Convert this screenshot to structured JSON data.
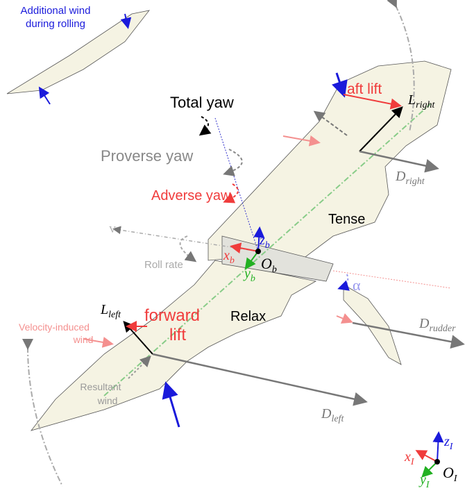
{
  "labels": {
    "additional_wind": [
      "Additional wind",
      "during rolling"
    ],
    "aft_lift": "aft lift",
    "l_right": {
      "main": "L",
      "sub": "right"
    },
    "total_yaw": "Total yaw",
    "proverse_yaw": "Proverse yaw",
    "d_right": {
      "main": "D",
      "sub": "right"
    },
    "adverse_yaw": "Adverse yaw",
    "tense": "Tense",
    "v": "V",
    "z_b": {
      "main": "z",
      "sub": "b"
    },
    "x_b": {
      "main": "x",
      "sub": "b"
    },
    "o_b": {
      "main": "O",
      "sub": "b"
    },
    "y_b": {
      "main": "y",
      "sub": "b"
    },
    "roll_rate": "Roll rate",
    "alpha": "α",
    "l_left": {
      "main": "L",
      "sub": "left"
    },
    "forward_lift": [
      "forward",
      "lift"
    ],
    "relax": "Relax",
    "d_rudder": {
      "main": "D",
      "sub": "rudder"
    },
    "velocity_wind": [
      "Velocity-induced",
      "wind"
    ],
    "resultant_wind": [
      "Resultant",
      "wind"
    ],
    "d_left": {
      "main": "D",
      "sub": "left"
    },
    "z_i": {
      "main": "z",
      "sub": "I"
    },
    "x_i": {
      "main": "x",
      "sub": "I"
    },
    "o_i": {
      "main": "O",
      "sub": "I"
    },
    "y_i": {
      "main": "y",
      "sub": "I"
    }
  }
}
